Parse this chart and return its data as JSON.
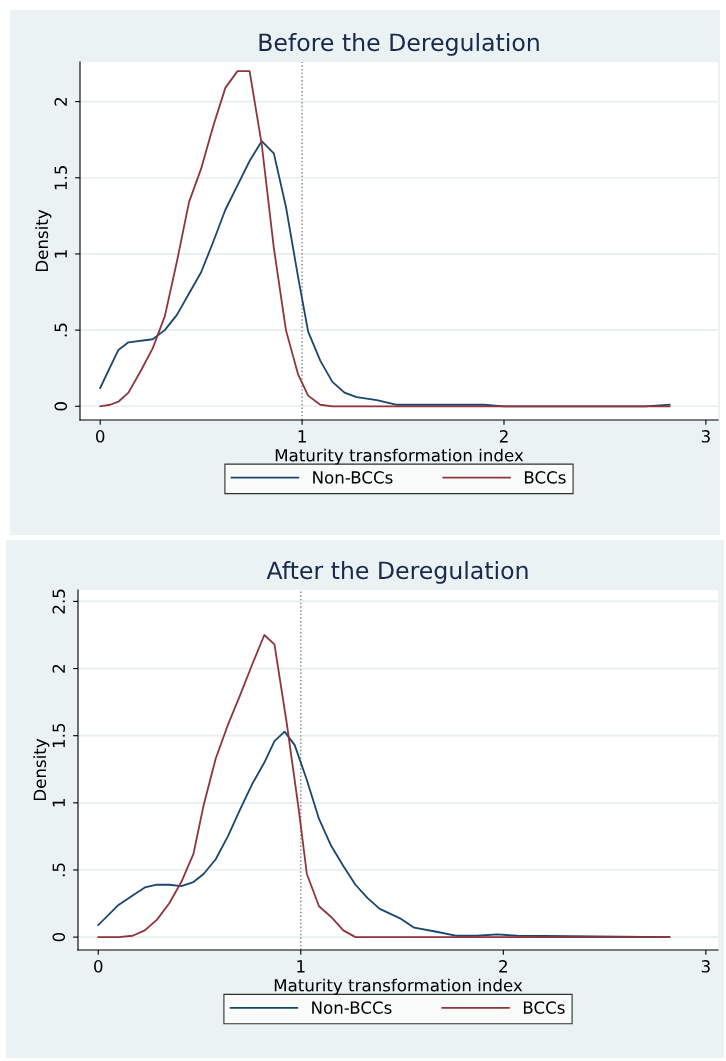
{
  "chart_data": [
    {
      "type": "line",
      "title": "Before the Deregulation",
      "xlabel": "Maturity transformation index",
      "ylabel": "Density",
      "xlim": [
        -0.1,
        3.06
      ],
      "xticks": [
        0,
        1,
        2,
        3
      ],
      "ylim": [
        -0.09,
        2.26
      ],
      "yticks": [
        0,
        {
          "value": 0.5,
          "label": ".5"
        },
        1,
        1.5,
        2
      ],
      "grid": "y",
      "legend": "bottom",
      "ref_lines": [
        {
          "axis": "x",
          "value": 1,
          "color": "#808080",
          "line_style": "dotted"
        }
      ],
      "series": [
        {
          "name": "Non-BCCs",
          "color": "#1a476f",
          "x": [
            0,
            0.09,
            0.14,
            0.26,
            0.32,
            0.38,
            0.44,
            0.5,
            0.56,
            0.62,
            0.68,
            0.74,
            0.8,
            0.86,
            0.92,
            0.98,
            1.03,
            1.09,
            1.15,
            1.21,
            1.27,
            1.37,
            1.47,
            1.6,
            1.9,
            2.0,
            2.7,
            2.82
          ],
          "values": [
            0.12,
            0.37,
            0.42,
            0.44,
            0.5,
            0.6,
            0.74,
            0.88,
            1.08,
            1.29,
            1.45,
            1.61,
            1.74,
            1.66,
            1.31,
            0.85,
            0.49,
            0.3,
            0.16,
            0.09,
            0.06,
            0.04,
            0.01,
            0.01,
            0.01,
            0,
            0,
            0.01
          ]
        },
        {
          "name": "BCCs",
          "color": "#90353b",
          "x": [
            0,
            0.05,
            0.09,
            0.14,
            0.2,
            0.26,
            0.32,
            0.38,
            0.44,
            0.5,
            0.56,
            0.62,
            0.68,
            0.74,
            0.8,
            0.86,
            0.92,
            0.98,
            1.03,
            1.09,
            1.15,
            2.82
          ],
          "values": [
            0,
            0.01,
            0.03,
            0.09,
            0.23,
            0.38,
            0.59,
            0.95,
            1.34,
            1.56,
            1.84,
            2.09,
            2.2,
            2.2,
            1.72,
            1.04,
            0.5,
            0.21,
            0.07,
            0.01,
            0,
            0
          ]
        }
      ]
    },
    {
      "type": "line",
      "title": "After the Deregulation",
      "xlabel": "Maturity transformation index",
      "ylabel": "Density",
      "xlim": [
        -0.1,
        3.06
      ],
      "xticks": [
        0,
        1,
        2,
        3
      ],
      "ylim": [
        -0.096,
        2.585
      ],
      "yticks": [
        0,
        {
          "value": 0.5,
          "label": ".5"
        },
        1,
        1.5,
        2,
        2.5
      ],
      "grid": "y",
      "legend": "bottom",
      "ref_lines": [
        {
          "axis": "x",
          "value": 1,
          "color": "#808080",
          "line_style": "dotted"
        }
      ],
      "series": [
        {
          "name": "Non-BCCs",
          "color": "#1a476f",
          "x": [
            0,
            0.1,
            0.17,
            0.23,
            0.29,
            0.35,
            0.41,
            0.47,
            0.52,
            0.58,
            0.64,
            0.7,
            0.76,
            0.82,
            0.87,
            0.92,
            0.97,
            1.03,
            1.09,
            1.15,
            1.21,
            1.27,
            1.33,
            1.39,
            1.49,
            1.56,
            1.67,
            1.77,
            1.87,
            1.97,
            2.07,
            2.82
          ],
          "values": [
            0.09,
            0.24,
            0.31,
            0.37,
            0.39,
            0.39,
            0.38,
            0.41,
            0.47,
            0.58,
            0.75,
            0.95,
            1.14,
            1.3,
            1.46,
            1.53,
            1.43,
            1.17,
            0.88,
            0.68,
            0.53,
            0.39,
            0.29,
            0.21,
            0.14,
            0.07,
            0.04,
            0.01,
            0.01,
            0.02,
            0.01,
            0
          ]
        },
        {
          "name": "BCCs",
          "color": "#90353b",
          "x": [
            0,
            0.1,
            0.17,
            0.23,
            0.29,
            0.35,
            0.41,
            0.47,
            0.52,
            0.58,
            0.64,
            0.7,
            0.76,
            0.82,
            0.87,
            0.93,
            0.99,
            1.03,
            1.09,
            1.15,
            1.21,
            1.27,
            2.82
          ],
          "values": [
            0,
            0,
            0.01,
            0.05,
            0.13,
            0.25,
            0.41,
            0.62,
            0.98,
            1.33,
            1.58,
            1.8,
            2.03,
            2.25,
            2.18,
            1.6,
            0.95,
            0.47,
            0.23,
            0.15,
            0.05,
            0,
            0
          ]
        }
      ]
    }
  ]
}
